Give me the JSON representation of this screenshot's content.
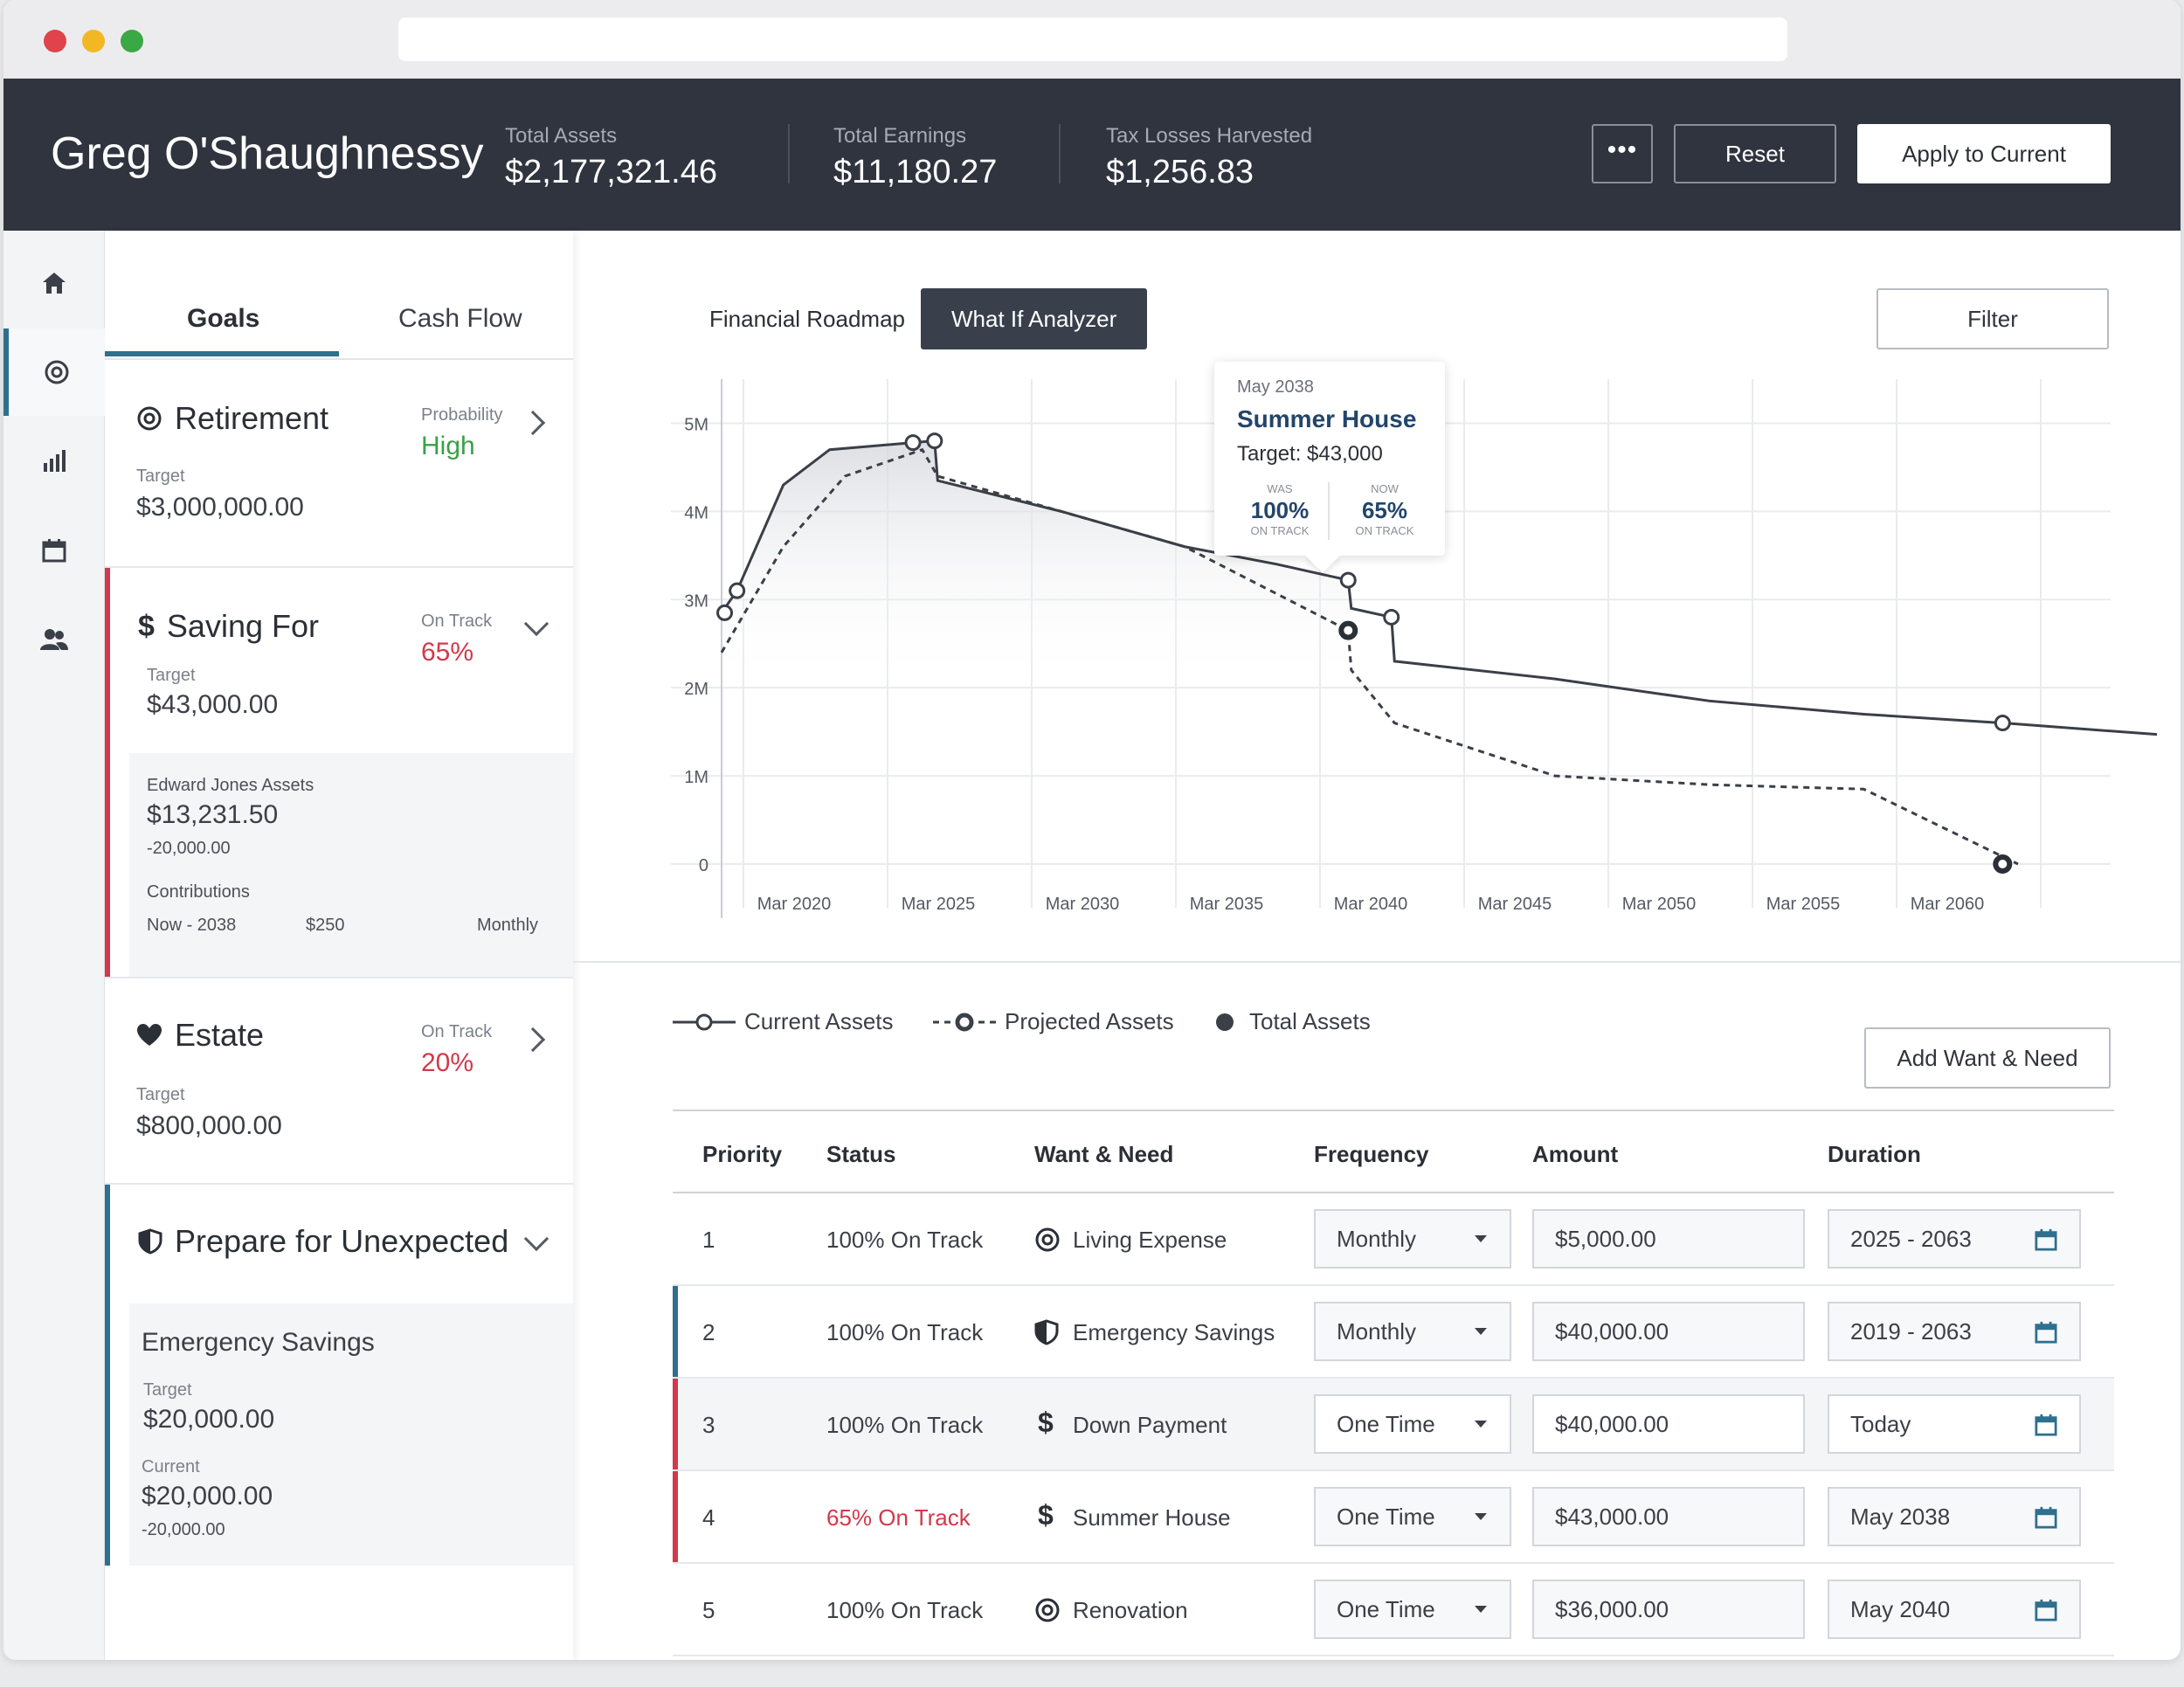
{
  "header": {
    "user_name": "Greg O'Shaughnessy",
    "stats": [
      {
        "label": "Total Assets",
        "value": "$2,177,321.46"
      },
      {
        "label": "Total Earnings",
        "value": "$11,180.27"
      },
      {
        "label": "Tax Losses Harvested",
        "value": "$1,256.83"
      }
    ],
    "more_label": "•••",
    "reset_label": "Reset",
    "apply_label": "Apply to Current"
  },
  "panel": {
    "tabs": [
      {
        "label": "Goals"
      },
      {
        "label": "Cash Flow"
      }
    ],
    "goals": [
      {
        "title": "Retirement",
        "status_label": "Probability",
        "status_value": "High",
        "target_label": "Target",
        "target": "$3,000,000.00"
      },
      {
        "title": "Saving For",
        "status_label": "On Track",
        "status_value": "65%",
        "target_label": "Target",
        "target": "$43,000.00",
        "detail": {
          "assets_label": "Edward Jones Assets",
          "assets_value": "$13,231.50",
          "assets_delta": "-20,000.00",
          "contrib_label": "Contributions",
          "contrib_period": "Now - 2038",
          "contrib_amount": "$250",
          "contrib_freq": "Monthly"
        }
      },
      {
        "title": "Estate",
        "status_label": "On Track",
        "status_value": "20%",
        "target_label": "Target",
        "target": "$800,000.00"
      },
      {
        "title": "Prepare for Unexpected",
        "detail": {
          "name": "Emergency Savings",
          "target_label": "Target",
          "target": "$20,000.00",
          "current_label": "Current",
          "current": "$20,000.00",
          "delta": "-20,000.00"
        }
      }
    ]
  },
  "main": {
    "tabs": [
      {
        "label": "Financial Roadmap"
      },
      {
        "label": "What If Analyzer"
      }
    ],
    "filter_label": "Filter",
    "add_label": "Add Want & Need",
    "tooltip": {
      "date": "May 2038",
      "title": "Summer House",
      "target": "Target: $43,000",
      "was_label": "WAS",
      "was_value": "100%",
      "was_sub": "ON TRACK",
      "now_label": "NOW",
      "now_value": "65%",
      "now_sub": "ON TRACK"
    },
    "legend": [
      {
        "label": "Current Assets"
      },
      {
        "label": "Projected Assets"
      },
      {
        "label": "Total Assets"
      }
    ],
    "table": {
      "headers": [
        "Priority",
        "Status",
        "Want & Need",
        "Frequency",
        "Amount",
        "Duration"
      ],
      "rows": [
        {
          "priority": "1",
          "status": "100% On Track",
          "name": "Living Expense",
          "frequency": "Monthly",
          "amount": "$5,000.00",
          "duration": "2025 - 2063"
        },
        {
          "priority": "2",
          "status": "100% On Track",
          "name": "Emergency Savings",
          "frequency": "Monthly",
          "amount": "$40,000.00",
          "duration": "2019 - 2063"
        },
        {
          "priority": "3",
          "status": "100% On Track",
          "name": "Down Payment",
          "frequency": "One Time",
          "amount": "$40,000.00",
          "duration": "Today"
        },
        {
          "priority": "4",
          "status": "65% On Track",
          "name": "Summer House",
          "frequency": "One Time",
          "amount": "$43,000.00",
          "duration": "May 2038"
        },
        {
          "priority": "5",
          "status": "100% On Track",
          "name": "Renovation",
          "frequency": "One Time",
          "amount": "$36,000.00",
          "duration": "May 2040"
        }
      ]
    }
  },
  "colors": {
    "accent": "#2f6f8f",
    "danger": "#d2394a",
    "good": "#3aa04a",
    "topbar": "#30343e"
  },
  "chart_data": {
    "type": "line",
    "yticks": [
      "0",
      "1M",
      "2M",
      "3M",
      "4M",
      "5M"
    ],
    "xticks": [
      "Mar 2020",
      "Mar 2025",
      "Mar 2030",
      "Mar 2035",
      "Mar 2040",
      "Mar 2045",
      "Mar 2050",
      "Mar 2055",
      "Mar 2060"
    ],
    "ylim": [
      0,
      5500000
    ],
    "xlim": [
      2018,
      2063
    ],
    "series": [
      {
        "name": "Current Assets",
        "style": "solid",
        "points": [
          [
            2018,
            2850000
          ],
          [
            2018.5,
            3100000
          ],
          [
            2020,
            4300000
          ],
          [
            2021.5,
            4700000
          ],
          [
            2024.2,
            4780000
          ],
          [
            2024.9,
            4800000
          ],
          [
            2025,
            4350000
          ],
          [
            2029,
            4000000
          ],
          [
            2033,
            3600000
          ],
          [
            2036,
            3400000
          ],
          [
            2038.3,
            3220000
          ],
          [
            2038.4,
            2900000
          ],
          [
            2039.7,
            2800000
          ],
          [
            2039.8,
            2300000
          ],
          [
            2045,
            2100000
          ],
          [
            2050,
            1850000
          ],
          [
            2055,
            1700000
          ],
          [
            2059.5,
            1600000
          ],
          [
            2064.5,
            1470000
          ]
        ]
      },
      {
        "name": "Projected Assets",
        "style": "dashed",
        "points": [
          [
            2018,
            2400000
          ],
          [
            2020,
            3600000
          ],
          [
            2022,
            4400000
          ],
          [
            2024.5,
            4700000
          ],
          [
            2025,
            4400000
          ],
          [
            2029,
            4000000
          ],
          [
            2033,
            3600000
          ],
          [
            2038.3,
            2650000
          ],
          [
            2038.4,
            2200000
          ],
          [
            2039.8,
            1600000
          ],
          [
            2045,
            1000000
          ],
          [
            2050,
            900000
          ],
          [
            2055,
            850000
          ],
          [
            2060,
            0
          ]
        ]
      }
    ],
    "markers_open": [
      [
        2018.1,
        2850000
      ],
      [
        2018.5,
        3100000
      ],
      [
        2024.2,
        4780000
      ],
      [
        2024.9,
        4800000
      ],
      [
        2038.3,
        3220000
      ],
      [
        2039.7,
        2800000
      ],
      [
        2059.5,
        1600000
      ]
    ],
    "markers_bold": [
      [
        2038.3,
        2650000
      ],
      [
        2059.5,
        0
      ]
    ]
  }
}
